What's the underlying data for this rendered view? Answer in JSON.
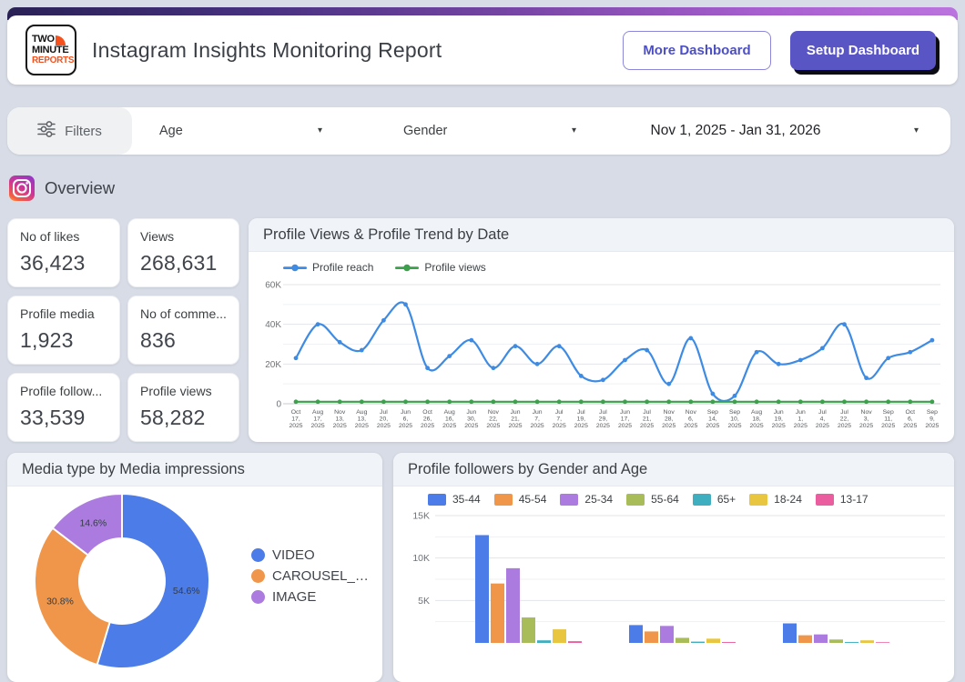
{
  "header": {
    "logo": {
      "line1": "TWO",
      "line2": "MINUTE",
      "line3": "REPORTS"
    },
    "title": "Instagram Insights Monitoring Report",
    "more_button": "More Dashboard",
    "setup_button": "Setup Dashboard"
  },
  "filters": {
    "label": "Filters",
    "age_label": "Age",
    "gender_label": "Gender",
    "date_range": "Nov 1, 2025 - Jan 31, 2026"
  },
  "icons": {
    "caret": "▾"
  },
  "overview": {
    "title": "Overview"
  },
  "kpis": [
    {
      "label": "No of likes",
      "value": "36,423"
    },
    {
      "label": "Views",
      "value": "268,631"
    },
    {
      "label": "Profile media",
      "value": "1,923"
    },
    {
      "label": "No of comme...",
      "value": "836"
    },
    {
      "label": "Profile follow...",
      "value": "33,539"
    },
    {
      "label": "Profile views",
      "value": "58,282"
    }
  ],
  "colors": {
    "accent_purple": "#5955c5",
    "logo_orange": "#f4511e",
    "line_blue": "#3e8be4",
    "line_green": "#3da04c"
  },
  "chart_data": [
    {
      "type": "line",
      "title": "Profile Views & Profile Trend by Date",
      "x": [
        "Oct 17, 2025",
        "Aug 17, 2025",
        "Nov 13, 2025",
        "Aug 13, 2025",
        "Jul 20, 2025",
        "Jun 6, 2025",
        "Oct 26, 2025",
        "Aug 16, 2025",
        "Jun 30, 2025",
        "Nov 22, 2025",
        "Jun 21, 2025",
        "Jun 7, 2025",
        "Jul 7, 2025",
        "Jul 19, 2025",
        "Jul 29, 2025",
        "Jun 17, 2025",
        "Jul 21, 2025",
        "Nov 28, 2025",
        "Nov 6, 2025",
        "Sep 14, 2025",
        "Sep 10, 2025",
        "Aug 18, 2025",
        "Jun 19, 2025",
        "Jun 1, 2025",
        "Jul 4, 2025",
        "Jul 22, 2025",
        "Nov 3, 2025",
        "Sep 11, 2025",
        "Oct 6, 2025",
        "Sep 9, 2025"
      ],
      "series": [
        {
          "name": "Profile reach",
          "color": "#3e8be4",
          "values": [
            23000,
            40000,
            31000,
            27000,
            42000,
            50000,
            18000,
            24000,
            32000,
            18000,
            29000,
            20000,
            29000,
            14000,
            12000,
            22000,
            27000,
            10000,
            33000,
            5000,
            4000,
            26000,
            20000,
            22000,
            28000,
            40000,
            13000,
            23000,
            26000,
            32000
          ]
        },
        {
          "name": "Profile views",
          "color": "#3da04c",
          "values": [
            1000,
            1000,
            1000,
            1000,
            1000,
            1000,
            1000,
            1000,
            1000,
            1000,
            1000,
            1000,
            1000,
            1000,
            1000,
            1000,
            1000,
            1000,
            1000,
            1000,
            1000,
            1000,
            1000,
            1000,
            1000,
            1000,
            1000,
            1000,
            1000,
            1000
          ]
        }
      ],
      "ylim": [
        0,
        60000
      ],
      "yticks": [
        "0",
        "20K",
        "40K",
        "60K"
      ],
      "ytick_values": [
        0,
        20000,
        40000,
        60000
      ],
      "grid": true,
      "legend_position": "top"
    },
    {
      "type": "pie",
      "title": "Media type by Media impressions",
      "labels": [
        "VIDEO",
        "CAROUSEL_…",
        "IMAGE"
      ],
      "values": [
        54.6,
        30.8,
        14.6
      ],
      "display_labels": [
        "54.6%",
        "30.8%",
        "14.6%"
      ],
      "colors": [
        "#4c7ce8",
        "#f0964a",
        "#ab7be0"
      ],
      "donut": true,
      "legend_position": "right"
    },
    {
      "type": "bar",
      "title": "Profile followers by Gender and Age",
      "categories": [
        "",
        "",
        ""
      ],
      "series": [
        {
          "name": "35-44",
          "color": "#4c7ce8",
          "values": [
            12700,
            2100,
            2300
          ]
        },
        {
          "name": "45-54",
          "color": "#f0964a",
          "values": [
            7000,
            1350,
            900
          ]
        },
        {
          "name": "25-34",
          "color": "#ab7be0",
          "values": [
            8800,
            2000,
            1000
          ]
        },
        {
          "name": "55-64",
          "color": "#a9bc5a",
          "values": [
            3000,
            600,
            400
          ]
        },
        {
          "name": "65+",
          "color": "#3fafc0",
          "values": [
            300,
            150,
            100
          ]
        },
        {
          "name": "18-24",
          "color": "#e9c63f",
          "values": [
            1600,
            500,
            300
          ]
        },
        {
          "name": "13-17",
          "color": "#ea5e9f",
          "values": [
            200,
            100,
            80
          ]
        }
      ],
      "ylim": [
        0,
        15000
      ],
      "yticks": [
        "5K",
        "10K",
        "15K"
      ],
      "ytick_values": [
        5000,
        10000,
        15000
      ],
      "grid": true,
      "legend_position": "top",
      "note": "x-axis category labels cut off at bottom of screenshot"
    }
  ]
}
